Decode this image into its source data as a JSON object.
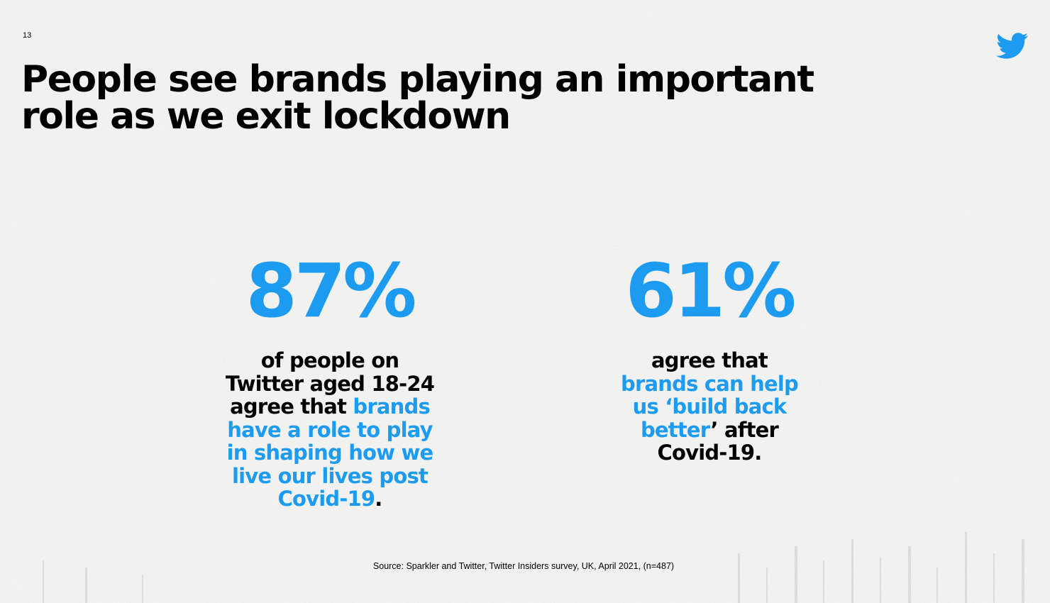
{
  "page_number": "13",
  "logo": {
    "icon": "twitter-bird-icon",
    "color": "#1d9bf0"
  },
  "title": {
    "line1": "People see brands playing an important",
    "line2": "role as we exit lockdown"
  },
  "colors": {
    "accent": "#1d9bf0",
    "text": "#000000",
    "background": "#f3f3f2"
  },
  "stats": [
    {
      "value": "87%",
      "lines": [
        {
          "black": "of people on"
        },
        {
          "black": "Twitter aged 18-24"
        },
        {
          "black": "agree that ",
          "blue": "brands"
        },
        {
          "blue": "have a role to play"
        },
        {
          "blue": "in shaping how we"
        },
        {
          "blue": "live our lives post"
        },
        {
          "blue": "Covid-19",
          "black": "."
        }
      ]
    },
    {
      "value": "61%",
      "lines": [
        {
          "black": "agree that"
        },
        {
          "blue": "brands can help"
        },
        {
          "blue": "us ‘build back"
        },
        {
          "blue": "better",
          "black": "’ after"
        },
        {
          "black": "Covid-19."
        }
      ]
    }
  ],
  "source": "Source: Sparkler and Twitter, Twitter Insiders survey, UK, April 2021, (n=487)"
}
